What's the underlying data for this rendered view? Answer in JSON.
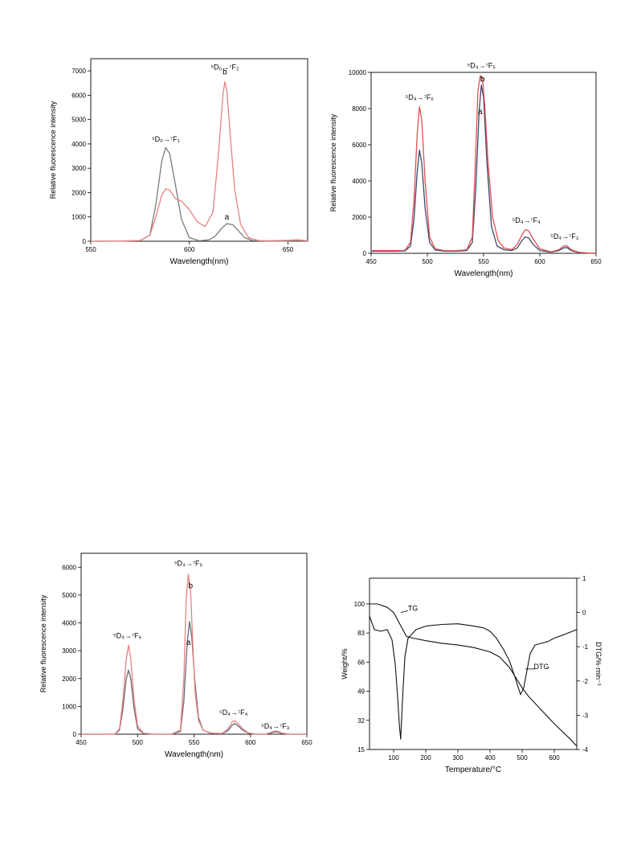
{
  "chart_data": [
    {
      "id": "eu",
      "type": "line",
      "ylabel": "Relative fluorescence intensity",
      "xlabel": "Wavelength(nm)",
      "xlim": [
        550,
        660
      ],
      "ylim": [
        0,
        7500
      ],
      "xticks": [
        550,
        600,
        650
      ],
      "yticks": [
        0,
        1000,
        2000,
        3000,
        4000,
        5000,
        6000,
        7000
      ],
      "series": [
        {
          "name": "a",
          "color": "#7a7a7a",
          "x": [
            550,
            565,
            575,
            580,
            583,
            586,
            588,
            590,
            593,
            596,
            600,
            605,
            610,
            613,
            616,
            619,
            622,
            625,
            628,
            632,
            640,
            650,
            655,
            660
          ],
          "y": [
            0,
            5,
            30,
            250,
            1500,
            3300,
            3850,
            3600,
            2300,
            900,
            150,
            20,
            60,
            200,
            500,
            720,
            680,
            420,
            150,
            30,
            5,
            5,
            20,
            5
          ]
        },
        {
          "name": "b",
          "color": "#e88080",
          "x": [
            550,
            565,
            575,
            580,
            583,
            586,
            588,
            590,
            593,
            596,
            600,
            604,
            608,
            612,
            615,
            617,
            618,
            619,
            621,
            623,
            626,
            630,
            635,
            640,
            650,
            655,
            660
          ],
          "y": [
            0,
            5,
            30,
            250,
            1000,
            1900,
            2150,
            2100,
            1750,
            1650,
            1300,
            800,
            600,
            1200,
            3800,
            6000,
            6550,
            6200,
            4100,
            2100,
            700,
            150,
            30,
            20,
            40,
            60,
            20
          ]
        }
      ],
      "annotations": [
        {
          "text": "⁵D₀→⁷F₁",
          "x": 588,
          "y": 4100
        },
        {
          "text": "⁵D₀→⁷F₂",
          "x": 618,
          "y": 7050
        },
        {
          "text": "b",
          "x": 618,
          "y": 6850
        },
        {
          "text": "a",
          "x": 619,
          "y": 900
        }
      ]
    },
    {
      "id": "tb1",
      "type": "line",
      "ylabel": "Relative fluorescence intensity",
      "xlabel": "Wavelength(nm)",
      "xlim": [
        450,
        650
      ],
      "ylim": [
        0,
        10000
      ],
      "xticks": [
        450,
        500,
        550,
        600,
        650
      ],
      "yticks": [
        0,
        2000,
        4000,
        6000,
        8000,
        10000
      ],
      "series": [
        {
          "name": "a",
          "color": "#3a4a6a",
          "x": [
            450,
            470,
            480,
            485,
            488,
            491,
            493,
            495,
            498,
            502,
            507,
            515,
            525,
            535,
            540,
            543,
            546,
            548,
            550,
            553,
            557,
            562,
            568,
            575,
            580,
            584,
            587,
            590,
            594,
            600,
            610,
            617,
            621,
            624,
            628,
            635,
            645,
            650
          ],
          "y": [
            120,
            120,
            130,
            400,
            1800,
            4500,
            5700,
            5000,
            2500,
            600,
            180,
            120,
            110,
            150,
            600,
            3500,
            7800,
            9300,
            8600,
            5000,
            1500,
            400,
            200,
            150,
            300,
            700,
            900,
            850,
            500,
            150,
            60,
            150,
            300,
            320,
            150,
            40,
            10,
            0
          ]
        },
        {
          "name": "b",
          "color": "#e05050",
          "x": [
            450,
            470,
            480,
            485,
            488,
            491,
            493,
            495,
            498,
            502,
            507,
            515,
            525,
            535,
            540,
            543,
            545,
            547,
            549,
            551,
            554,
            558,
            563,
            568,
            575,
            580,
            584,
            587,
            590,
            594,
            600,
            610,
            617,
            621,
            624,
            628,
            635,
            645,
            650
          ],
          "y": [
            150,
            150,
            160,
            600,
            2800,
            6600,
            8100,
            7400,
            4000,
            900,
            250,
            150,
            140,
            200,
            900,
            5500,
            9000,
            9800,
            9700,
            8200,
            5000,
            2000,
            700,
            300,
            200,
            500,
            1000,
            1300,
            1250,
            800,
            250,
            80,
            200,
            400,
            420,
            200,
            50,
            10,
            0
          ]
        }
      ],
      "annotations": [
        {
          "text": "⁵D₄→⁷F₆",
          "x": 493,
          "y": 8500
        },
        {
          "text": "⁵D₄→⁷F₅",
          "x": 548,
          "y": 10250
        },
        {
          "text": "b",
          "x": 549,
          "y": 9500
        },
        {
          "text": "a",
          "x": 547,
          "y": 7700
        },
        {
          "text": "⁵D₄→⁷F₄",
          "x": 588,
          "y": 1700
        },
        {
          "text": "⁵D₄→⁷F₃",
          "x": 622,
          "y": 800
        }
      ]
    },
    {
      "id": "tb2",
      "type": "line",
      "ylabel": "Relative fluorescence intensity",
      "xlabel": "Wavelength(nm)",
      "xlim": [
        450,
        650
      ],
      "ylim": [
        0,
        6500
      ],
      "xticks": [
        450,
        500,
        550,
        600,
        650
      ],
      "yticks": [
        0,
        1000,
        2000,
        3000,
        4000,
        5000,
        6000
      ],
      "series": [
        {
          "name": "a",
          "color": "#6a6a7a",
          "x": [
            450,
            470,
            480,
            484,
            487,
            490,
            492,
            494,
            497,
            500,
            505,
            515,
            530,
            538,
            541,
            544,
            546,
            548,
            551,
            554,
            558,
            565,
            575,
            580,
            584,
            586,
            589,
            593,
            598,
            605,
            613,
            618,
            621,
            624,
            628,
            635,
            650
          ],
          "y": [
            0,
            0,
            10,
            150,
            900,
            2000,
            2300,
            2000,
            900,
            200,
            30,
            0,
            0,
            100,
            1200,
            3300,
            4050,
            3500,
            1800,
            600,
            150,
            30,
            20,
            120,
            330,
            380,
            300,
            150,
            40,
            0,
            0,
            40,
            80,
            80,
            30,
            0,
            0
          ]
        },
        {
          "name": "b",
          "color": "#e88080",
          "x": [
            450,
            470,
            480,
            484,
            487,
            490,
            492,
            494,
            497,
            500,
            505,
            515,
            530,
            538,
            541,
            543,
            545,
            547,
            549,
            551,
            554,
            558,
            565,
            575,
            580,
            584,
            586,
            589,
            593,
            598,
            605,
            613,
            618,
            621,
            624,
            628,
            635,
            650
          ],
          "y": [
            0,
            0,
            10,
            200,
            1200,
            2700,
            3200,
            2700,
            1200,
            300,
            40,
            0,
            0,
            150,
            2000,
            4800,
            5750,
            5100,
            3200,
            1500,
            500,
            150,
            40,
            30,
            180,
            450,
            480,
            380,
            200,
            50,
            0,
            0,
            60,
            110,
            110,
            40,
            0,
            0
          ]
        }
      ],
      "annotations": [
        {
          "text": "⁵D₄→⁷F₆",
          "x": 491,
          "y": 3450
        },
        {
          "text": "⁵D₄→⁷F₅",
          "x": 545,
          "y": 6050
        },
        {
          "text": "b",
          "x": 547,
          "y": 5250
        },
        {
          "text": "a",
          "x": 545,
          "y": 3200
        },
        {
          "text": "⁵D₄→⁷F₄",
          "x": 585,
          "y": 700
        },
        {
          "text": "⁵D₄→⁷F₃",
          "x": 622,
          "y": 200
        }
      ]
    },
    {
      "id": "tga",
      "type": "line",
      "xlabel": "Temperature/°C",
      "ylabel": "Weight/%",
      "y2label": "DTG/%·min⁻¹",
      "xlim": [
        25,
        670
      ],
      "ylim": [
        15,
        115
      ],
      "y2lim": [
        -4,
        1
      ],
      "xticks": [
        100,
        200,
        300,
        400,
        500,
        600
      ],
      "yticks": [
        15,
        32,
        49,
        66,
        83,
        100
      ],
      "y2ticks": [
        -4,
        -3,
        -2,
        -1,
        0,
        1
      ],
      "series": [
        {
          "name": "TG",
          "axis": "left",
          "color": "#111111",
          "x": [
            25,
            50,
            80,
            100,
            120,
            140,
            160,
            200,
            250,
            300,
            350,
            400,
            430,
            460,
            480,
            500,
            520,
            550,
            600,
            650,
            670
          ],
          "y": [
            100,
            100,
            98,
            95,
            88,
            81,
            80,
            78.5,
            77,
            76,
            74.5,
            72,
            69,
            63,
            57,
            51,
            46,
            40,
            30,
            21,
            17
          ]
        },
        {
          "name": "DTG",
          "axis": "right",
          "color": "#111111",
          "x": [
            25,
            40,
            60,
            80,
            95,
            105,
            112,
            118,
            122,
            128,
            135,
            145,
            170,
            200,
            250,
            300,
            350,
            380,
            400,
            420,
            440,
            460,
            480,
            495,
            505,
            515,
            525,
            540,
            560,
            580,
            600,
            630,
            670
          ],
          "y": [
            -0.1,
            -0.5,
            -0.55,
            -0.5,
            -0.8,
            -1.5,
            -2.4,
            -3.3,
            -3.7,
            -2.5,
            -1.3,
            -0.75,
            -0.5,
            -0.4,
            -0.35,
            -0.33,
            -0.4,
            -0.45,
            -0.55,
            -0.75,
            -1.05,
            -1.4,
            -1.95,
            -2.4,
            -2.2,
            -1.7,
            -1.2,
            -0.95,
            -0.9,
            -0.85,
            -0.75,
            -0.65,
            -0.5
          ]
        }
      ],
      "annotations": [
        {
          "text": "TG",
          "x": 160,
          "y": 96
        },
        {
          "text": "DTG",
          "x": 560,
          "y": 62
        }
      ]
    }
  ]
}
